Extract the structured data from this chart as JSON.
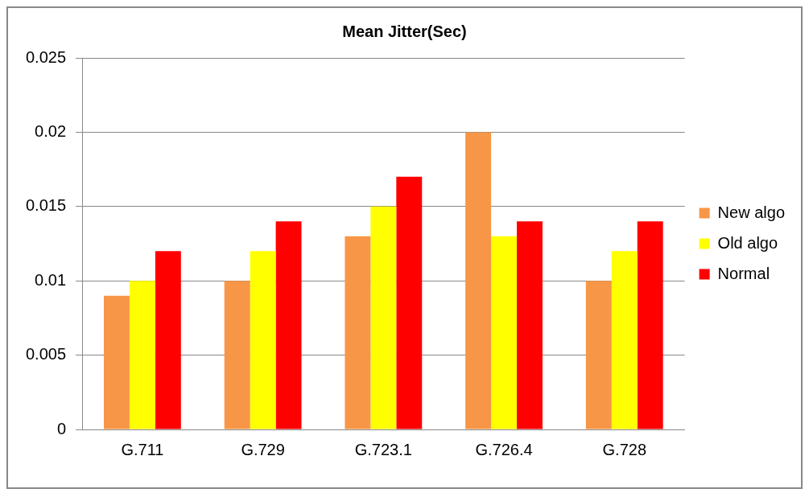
{
  "chart_data": {
    "type": "bar",
    "title": "Mean Jitter(Sec)",
    "categories": [
      "G.711",
      "G.729",
      "G.723.1",
      "G.726.4",
      "G.728"
    ],
    "series": [
      {
        "name": "New algo",
        "color": "#f79646",
        "values": [
          0.009,
          0.01,
          0.013,
          0.02,
          0.01
        ]
      },
      {
        "name": "Old algo",
        "color": "#ffff00",
        "values": [
          0.01,
          0.012,
          0.015,
          0.013,
          0.012
        ]
      },
      {
        "name": "Normal",
        "color": "#ff0000",
        "values": [
          0.012,
          0.014,
          0.017,
          0.014,
          0.014
        ]
      }
    ],
    "ylim": [
      0,
      0.025
    ],
    "yticks": [
      0,
      0.005,
      0.01,
      0.015,
      0.02,
      0.025
    ],
    "grid": "y",
    "legend": "right"
  }
}
